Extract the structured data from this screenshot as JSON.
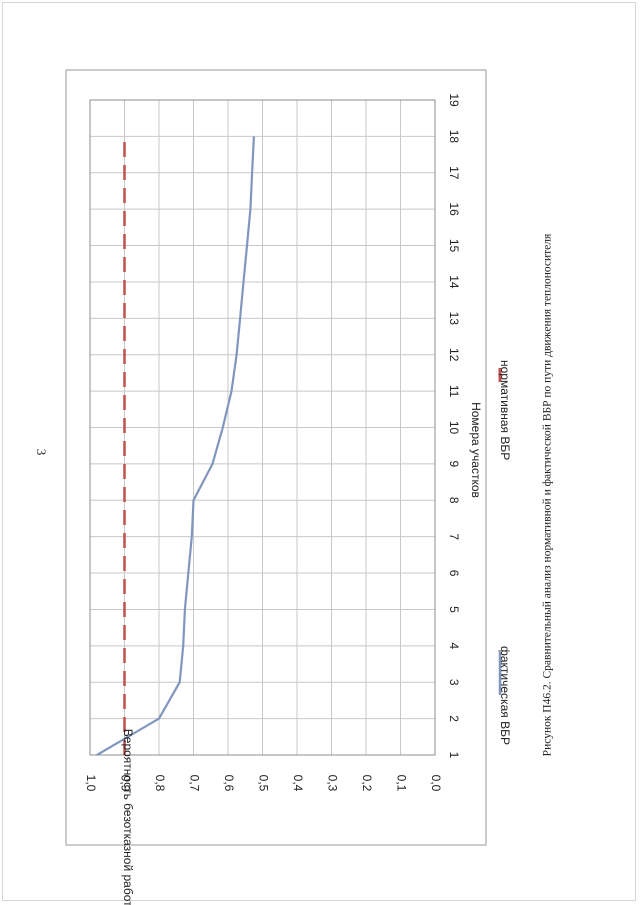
{
  "page_number": "3",
  "caption": "Рисунок П46.2. Сравнительный анализ нормативной и фактической ВБР по пути движения теплоносителя",
  "chart_data": {
    "type": "line",
    "title": "",
    "xlabel": "Номера участков",
    "ylabel": "Вероятность безотказной работы",
    "x_ticks": [
      "1",
      "2",
      "3",
      "4",
      "5",
      "6",
      "7",
      "8",
      "9",
      "10",
      "11",
      "12",
      "13",
      "14",
      "15",
      "16",
      "17",
      "18",
      "19"
    ],
    "y_ticks": [
      "0,0",
      "0,1",
      "0,2",
      "0,3",
      "0,4",
      "0,5",
      "0,6",
      "0,7",
      "0,8",
      "0,9",
      "1,0"
    ],
    "xlim": [
      1,
      19
    ],
    "ylim": [
      0,
      1
    ],
    "grid": true,
    "legend_position": "bottom",
    "orientation": "rotated-90",
    "series": [
      {
        "name": "фактическая ВБР",
        "color": "#8096bf",
        "style": "solid",
        "x": [
          1,
          2,
          3,
          4,
          5,
          6,
          7,
          8,
          9,
          10,
          11,
          12,
          13,
          14,
          15,
          16,
          17,
          18
        ],
        "values": [
          0.98,
          0.8,
          0.74,
          0.73,
          0.725,
          0.715,
          0.705,
          0.7,
          0.645,
          0.615,
          0.59,
          0.575,
          0.565,
          0.555,
          0.545,
          0.535,
          0.53,
          0.525
        ]
      },
      {
        "name": "нормативная ВБР",
        "color": "#c0504d",
        "style": "dashed",
        "x": [
          1,
          18
        ],
        "values": [
          0.9,
          0.9
        ]
      }
    ]
  }
}
